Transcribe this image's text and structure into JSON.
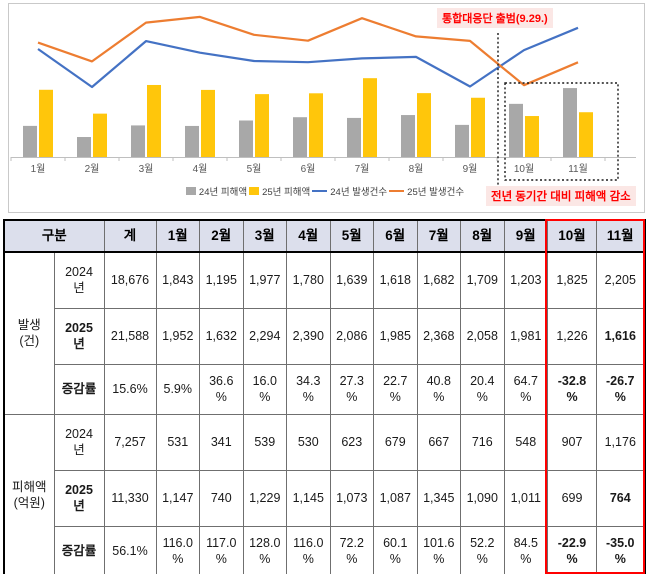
{
  "chart_data": {
    "type": "bar+line",
    "categories": [
      "1월",
      "2월",
      "3월",
      "4월",
      "5월",
      "6월",
      "7월",
      "8월",
      "9월",
      "10월",
      "11월"
    ],
    "series": [
      {
        "name": "24년 피해액",
        "type": "bar",
        "color": "#a8a8a8",
        "values": [
          531,
          341,
          539,
          530,
          623,
          679,
          667,
          716,
          548,
          907,
          1176
        ]
      },
      {
        "name": "25년 피해액",
        "type": "bar",
        "color": "#ffc60b",
        "values": [
          1147,
          740,
          1229,
          1145,
          1073,
          1087,
          1345,
          1090,
          1011,
          699,
          764
        ]
      },
      {
        "name": "24년 발생건수",
        "type": "line",
        "color": "#4472c4",
        "values": [
          1843,
          1195,
          1977,
          1780,
          1639,
          1618,
          1682,
          1709,
          1203,
          1825,
          2205
        ]
      },
      {
        "name": "25년 발생건수",
        "type": "line",
        "color": "#ed7d31",
        "values": [
          1952,
          1632,
          2294,
          2390,
          2086,
          1985,
          2368,
          2058,
          1981,
          1226,
          1616
        ]
      }
    ],
    "ylim": [
      0,
      2500
    ],
    "grid": false,
    "legend_position": "bottom",
    "annotations": {
      "event_label": "통합대응단 출범(9.29.)",
      "highlight_label": "전년 동기간 대비 피해액 감소",
      "highlight_months": [
        "10월",
        "11월"
      ]
    }
  },
  "table": {
    "header": [
      "구분",
      "계",
      "1월",
      "2월",
      "3월",
      "4월",
      "5월",
      "6월",
      "7월",
      "8월",
      "9월",
      "10월",
      "11월"
    ],
    "highlight_columns": [
      "10월",
      "11월"
    ],
    "groups": [
      {
        "label": "발생\n(건)",
        "rows": [
          {
            "label": "2024\n년",
            "label_bold": false,
            "cells": [
              {
                "t": "18,676"
              },
              {
                "t": "1,843"
              },
              {
                "t": "1,195"
              },
              {
                "t": "1,977"
              },
              {
                "t": "1,780"
              },
              {
                "t": "1,639"
              },
              {
                "t": "1,618"
              },
              {
                "t": "1,682"
              },
              {
                "t": "1,709"
              },
              {
                "t": "1,203"
              },
              {
                "t": "1,825"
              },
              {
                "t": "2,205"
              }
            ]
          },
          {
            "label": "2025\n년",
            "label_bold": true,
            "cells": [
              {
                "t": "21,588"
              },
              {
                "t": "1,952"
              },
              {
                "t": "1,632"
              },
              {
                "t": "2,294"
              },
              {
                "t": "2,390"
              },
              {
                "t": "2,086"
              },
              {
                "t": "1,985"
              },
              {
                "t": "2,368"
              },
              {
                "t": "2,058"
              },
              {
                "t": "1,981"
              },
              {
                "t": "1,226"
              },
              {
                "t": "1,616",
                "s": "bold"
              }
            ]
          },
          {
            "label": "증감률",
            "label_bold": true,
            "cells": [
              {
                "t": "15.6%"
              },
              {
                "t": "5.9%"
              },
              {
                "t": "36.6\n%"
              },
              {
                "t": "16.0\n%"
              },
              {
                "t": "34.3\n%"
              },
              {
                "t": "27.3\n%"
              },
              {
                "t": "22.7\n%"
              },
              {
                "t": "40.8\n%"
              },
              {
                "t": "20.4\n%"
              },
              {
                "t": "64.7\n%"
              },
              {
                "t": "-32.8\n%",
                "s": "neg"
              },
              {
                "t": "-26.7\n%",
                "s": "neg"
              }
            ]
          }
        ]
      },
      {
        "label": "피해액\n(억원)",
        "rows": [
          {
            "label": "2024\n년",
            "label_bold": false,
            "cells": [
              {
                "t": "7,257"
              },
              {
                "t": "531"
              },
              {
                "t": "341"
              },
              {
                "t": "539"
              },
              {
                "t": "530"
              },
              {
                "t": "623"
              },
              {
                "t": "679"
              },
              {
                "t": "667"
              },
              {
                "t": "716"
              },
              {
                "t": "548"
              },
              {
                "t": "907"
              },
              {
                "t": "1,176"
              }
            ]
          },
          {
            "label": "2025\n년",
            "label_bold": true,
            "cells": [
              {
                "t": "11,330"
              },
              {
                "t": "1,147"
              },
              {
                "t": "740"
              },
              {
                "t": "1,229"
              },
              {
                "t": "1,145"
              },
              {
                "t": "1,073"
              },
              {
                "t": "1,087"
              },
              {
                "t": "1,345"
              },
              {
                "t": "1,090"
              },
              {
                "t": "1,011"
              },
              {
                "t": "699"
              },
              {
                "t": "764",
                "s": "bold"
              }
            ]
          },
          {
            "label": "증감률",
            "label_bold": true,
            "cells": [
              {
                "t": "56.1%"
              },
              {
                "t": "116.0\n%"
              },
              {
                "t": "117.0\n%"
              },
              {
                "t": "128.0\n%"
              },
              {
                "t": "116.0\n%"
              },
              {
                "t": "72.2\n%"
              },
              {
                "t": "60.1\n%"
              },
              {
                "t": "101.6\n%"
              },
              {
                "t": "52.2\n%"
              },
              {
                "t": "84.5\n%"
              },
              {
                "t": "-22.9\n%",
                "s": "neg"
              },
              {
                "t": "-35.0\n%",
                "s": "neg"
              }
            ]
          }
        ]
      }
    ]
  },
  "colors": {
    "bar_2024": "#a8a8a8",
    "bar_2025": "#ffc60b",
    "line_2024": "#4472c4",
    "line_2025": "#ed7d31",
    "annotation_red": "#ff0000",
    "annotation_bg": "#fbe7e5",
    "negative_blue": "#0013f0",
    "header_bg": "#dcdfec"
  }
}
